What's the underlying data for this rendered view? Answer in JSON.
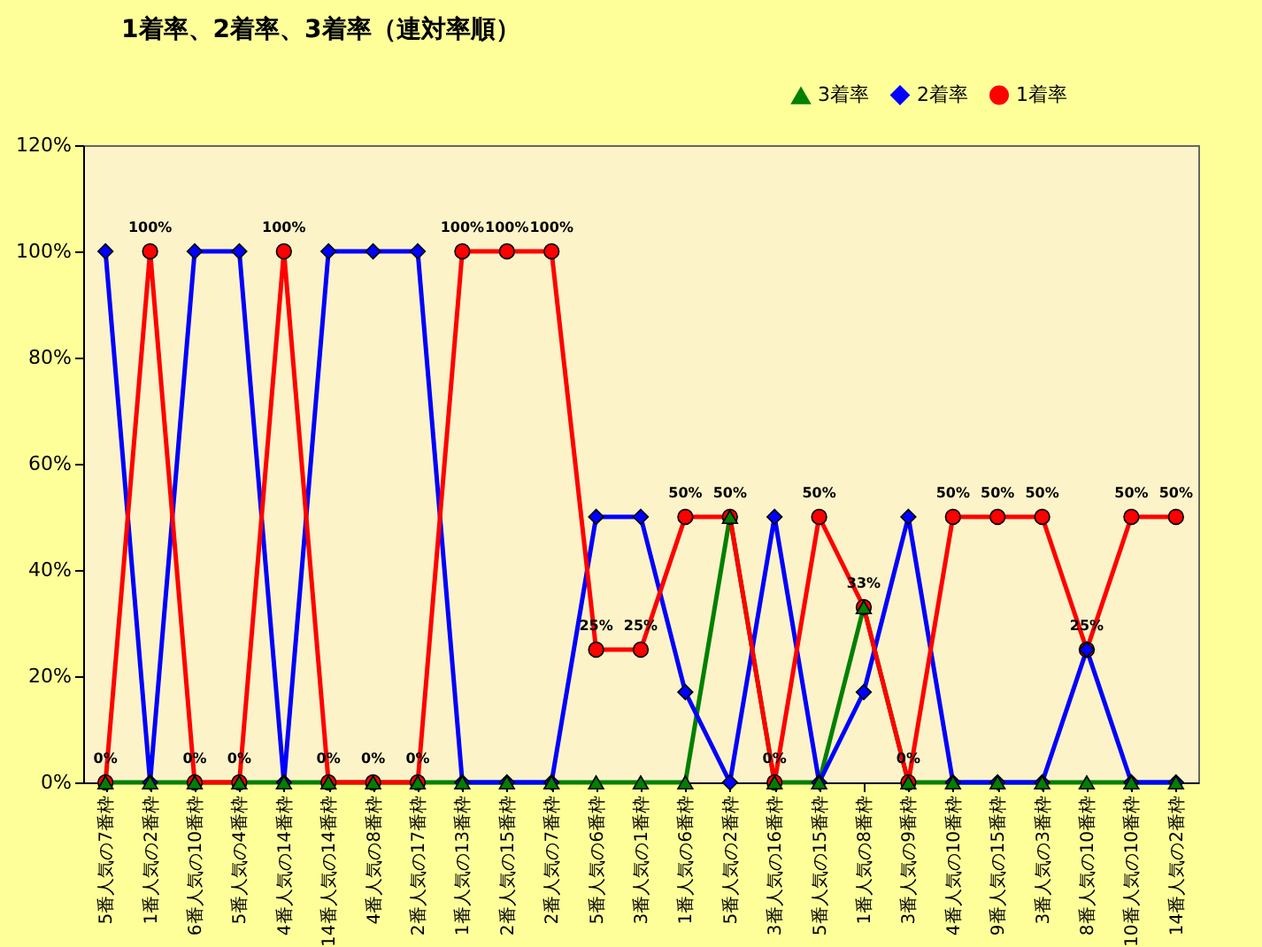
{
  "chart_data": {
    "type": "line",
    "title": "1着率、2着率、3着率（連対率順）",
    "categories": [
      "5番人気の7番枠",
      "1番人気の2番枠",
      "6番人気の10番枠",
      "5番人気の4番枠",
      "4番人気の14番枠",
      "14番人気の14番枠",
      "4番人気の8番枠",
      "2番人気の17番枠",
      "1番人気の13番枠",
      "2番人気の15番枠",
      "2番人気の7番枠",
      "5番人気の6番枠",
      "3番人気の1番枠",
      "1番人気の6番枠",
      "5番人気の2番枠",
      "3番人気の16番枠",
      "5番人気の15番枠",
      "1番人気の8番枠",
      "3番人気の9番枠",
      "4番人気の10番枠",
      "9番人気の15番枠",
      "3番人気の3番枠",
      "8番人気の10番枠",
      "10番人気の10番枠",
      "14番人気の2番枠"
    ],
    "series": [
      {
        "name": "3着率",
        "color": "#008000",
        "marker": "triangle",
        "values": [
          0,
          0,
          0,
          0,
          0,
          0,
          0,
          0,
          0,
          0,
          0,
          0,
          0,
          0,
          50,
          0,
          0,
          33,
          0,
          0,
          0,
          0,
          0,
          0,
          0
        ]
      },
      {
        "name": "2着率",
        "color": "#0000ff",
        "marker": "diamond",
        "values": [
          100,
          0,
          100,
          100,
          0,
          100,
          100,
          100,
          0,
          0,
          0,
          50,
          50,
          17,
          0,
          50,
          0,
          17,
          50,
          0,
          0,
          0,
          25,
          0,
          0
        ]
      },
      {
        "name": "1着率",
        "color": "#ff0000",
        "marker": "circle",
        "values": [
          0,
          100,
          0,
          0,
          100,
          0,
          0,
          0,
          100,
          100,
          100,
          25,
          25,
          50,
          50,
          0,
          50,
          33,
          0,
          50,
          50,
          50,
          25,
          50,
          50
        ],
        "value_labels": [
          "0%",
          "100%",
          "0%",
          "0%",
          "100%",
          "0%",
          "0%",
          "0%",
          "100%",
          "100%",
          "100%",
          "25%",
          "25%",
          "50%",
          "50%",
          "0%",
          "50%",
          "33%",
          "0%",
          "50%",
          "50%",
          "50%",
          "25%",
          "50%",
          "50%"
        ]
      }
    ],
    "ylim": [
      0,
      120
    ],
    "yticks": [
      {
        "value": 0,
        "label": "0%"
      },
      {
        "value": 20,
        "label": "20%"
      },
      {
        "value": 40,
        "label": "40%"
      },
      {
        "value": 60,
        "label": "60%"
      },
      {
        "value": 80,
        "label": "80%"
      },
      {
        "value": 100,
        "label": "100%"
      },
      {
        "value": 120,
        "label": "120%"
      }
    ],
    "legend": "top right",
    "grid": false
  }
}
